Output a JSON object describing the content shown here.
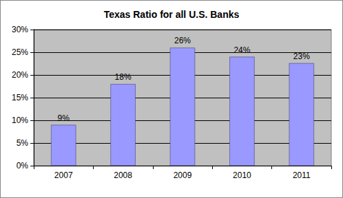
{
  "chart_data": {
    "type": "bar",
    "title": "Texas Ratio for all U.S. Banks",
    "categories": [
      "2007",
      "2008",
      "2009",
      "2010",
      "2011"
    ],
    "values": [
      9,
      18,
      26,
      24,
      22.6
    ],
    "value_labels": [
      "9%",
      "18%",
      "26%",
      "24%",
      "23%"
    ],
    "color": "#9999ff",
    "ylim": [
      0,
      30
    ],
    "yticks": [
      {
        "value": 0,
        "label": "0%"
      },
      {
        "value": 5,
        "label": "5%"
      },
      {
        "value": 10,
        "label": "10%"
      },
      {
        "value": 15,
        "label": "15%"
      },
      {
        "value": 20,
        "label": "20%"
      },
      {
        "value": 25,
        "label": "25%"
      },
      {
        "value": 30,
        "label": "30%"
      }
    ],
    "grid": true,
    "data_labels": true
  }
}
